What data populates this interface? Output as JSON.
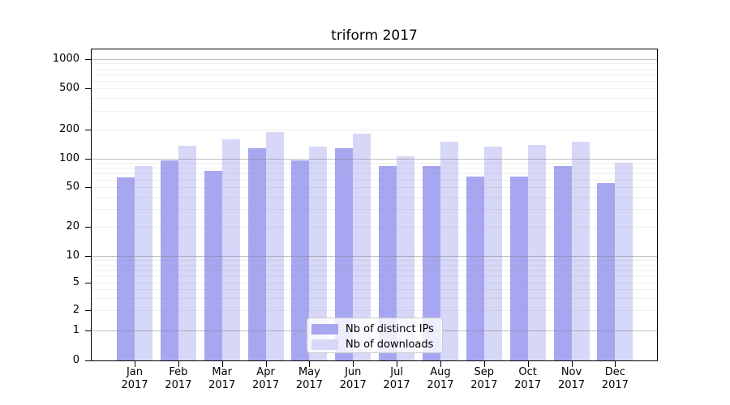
{
  "chart_data": {
    "type": "bar",
    "title": "triform 2017",
    "categories": [
      "Jan",
      "Feb",
      "Mar",
      "Apr",
      "May",
      "Jun",
      "Jul",
      "Aug",
      "Sep",
      "Oct",
      "Nov",
      "Dec"
    ],
    "year_label": "2017",
    "series": [
      {
        "name": "Nb of distinct IPs",
        "color": "#a7a7f1",
        "values": [
          64,
          97,
          75,
          129,
          97,
          129,
          83,
          83,
          65,
          65,
          83,
          55
        ]
      },
      {
        "name": "Nb of downloads",
        "color": "#d7d7f8",
        "values": [
          83,
          137,
          158,
          188,
          133,
          182,
          105,
          150,
          133,
          139,
          150,
          90
        ]
      }
    ],
    "yaxis": {
      "scale": "symlog",
      "ticks": [
        0,
        1,
        2,
        5,
        10,
        20,
        50,
        100,
        200,
        500,
        1000
      ],
      "ylim": [
        0,
        1200
      ]
    },
    "xlabel": "",
    "ylabel": "",
    "grid": true,
    "legend_position": "lower center"
  }
}
